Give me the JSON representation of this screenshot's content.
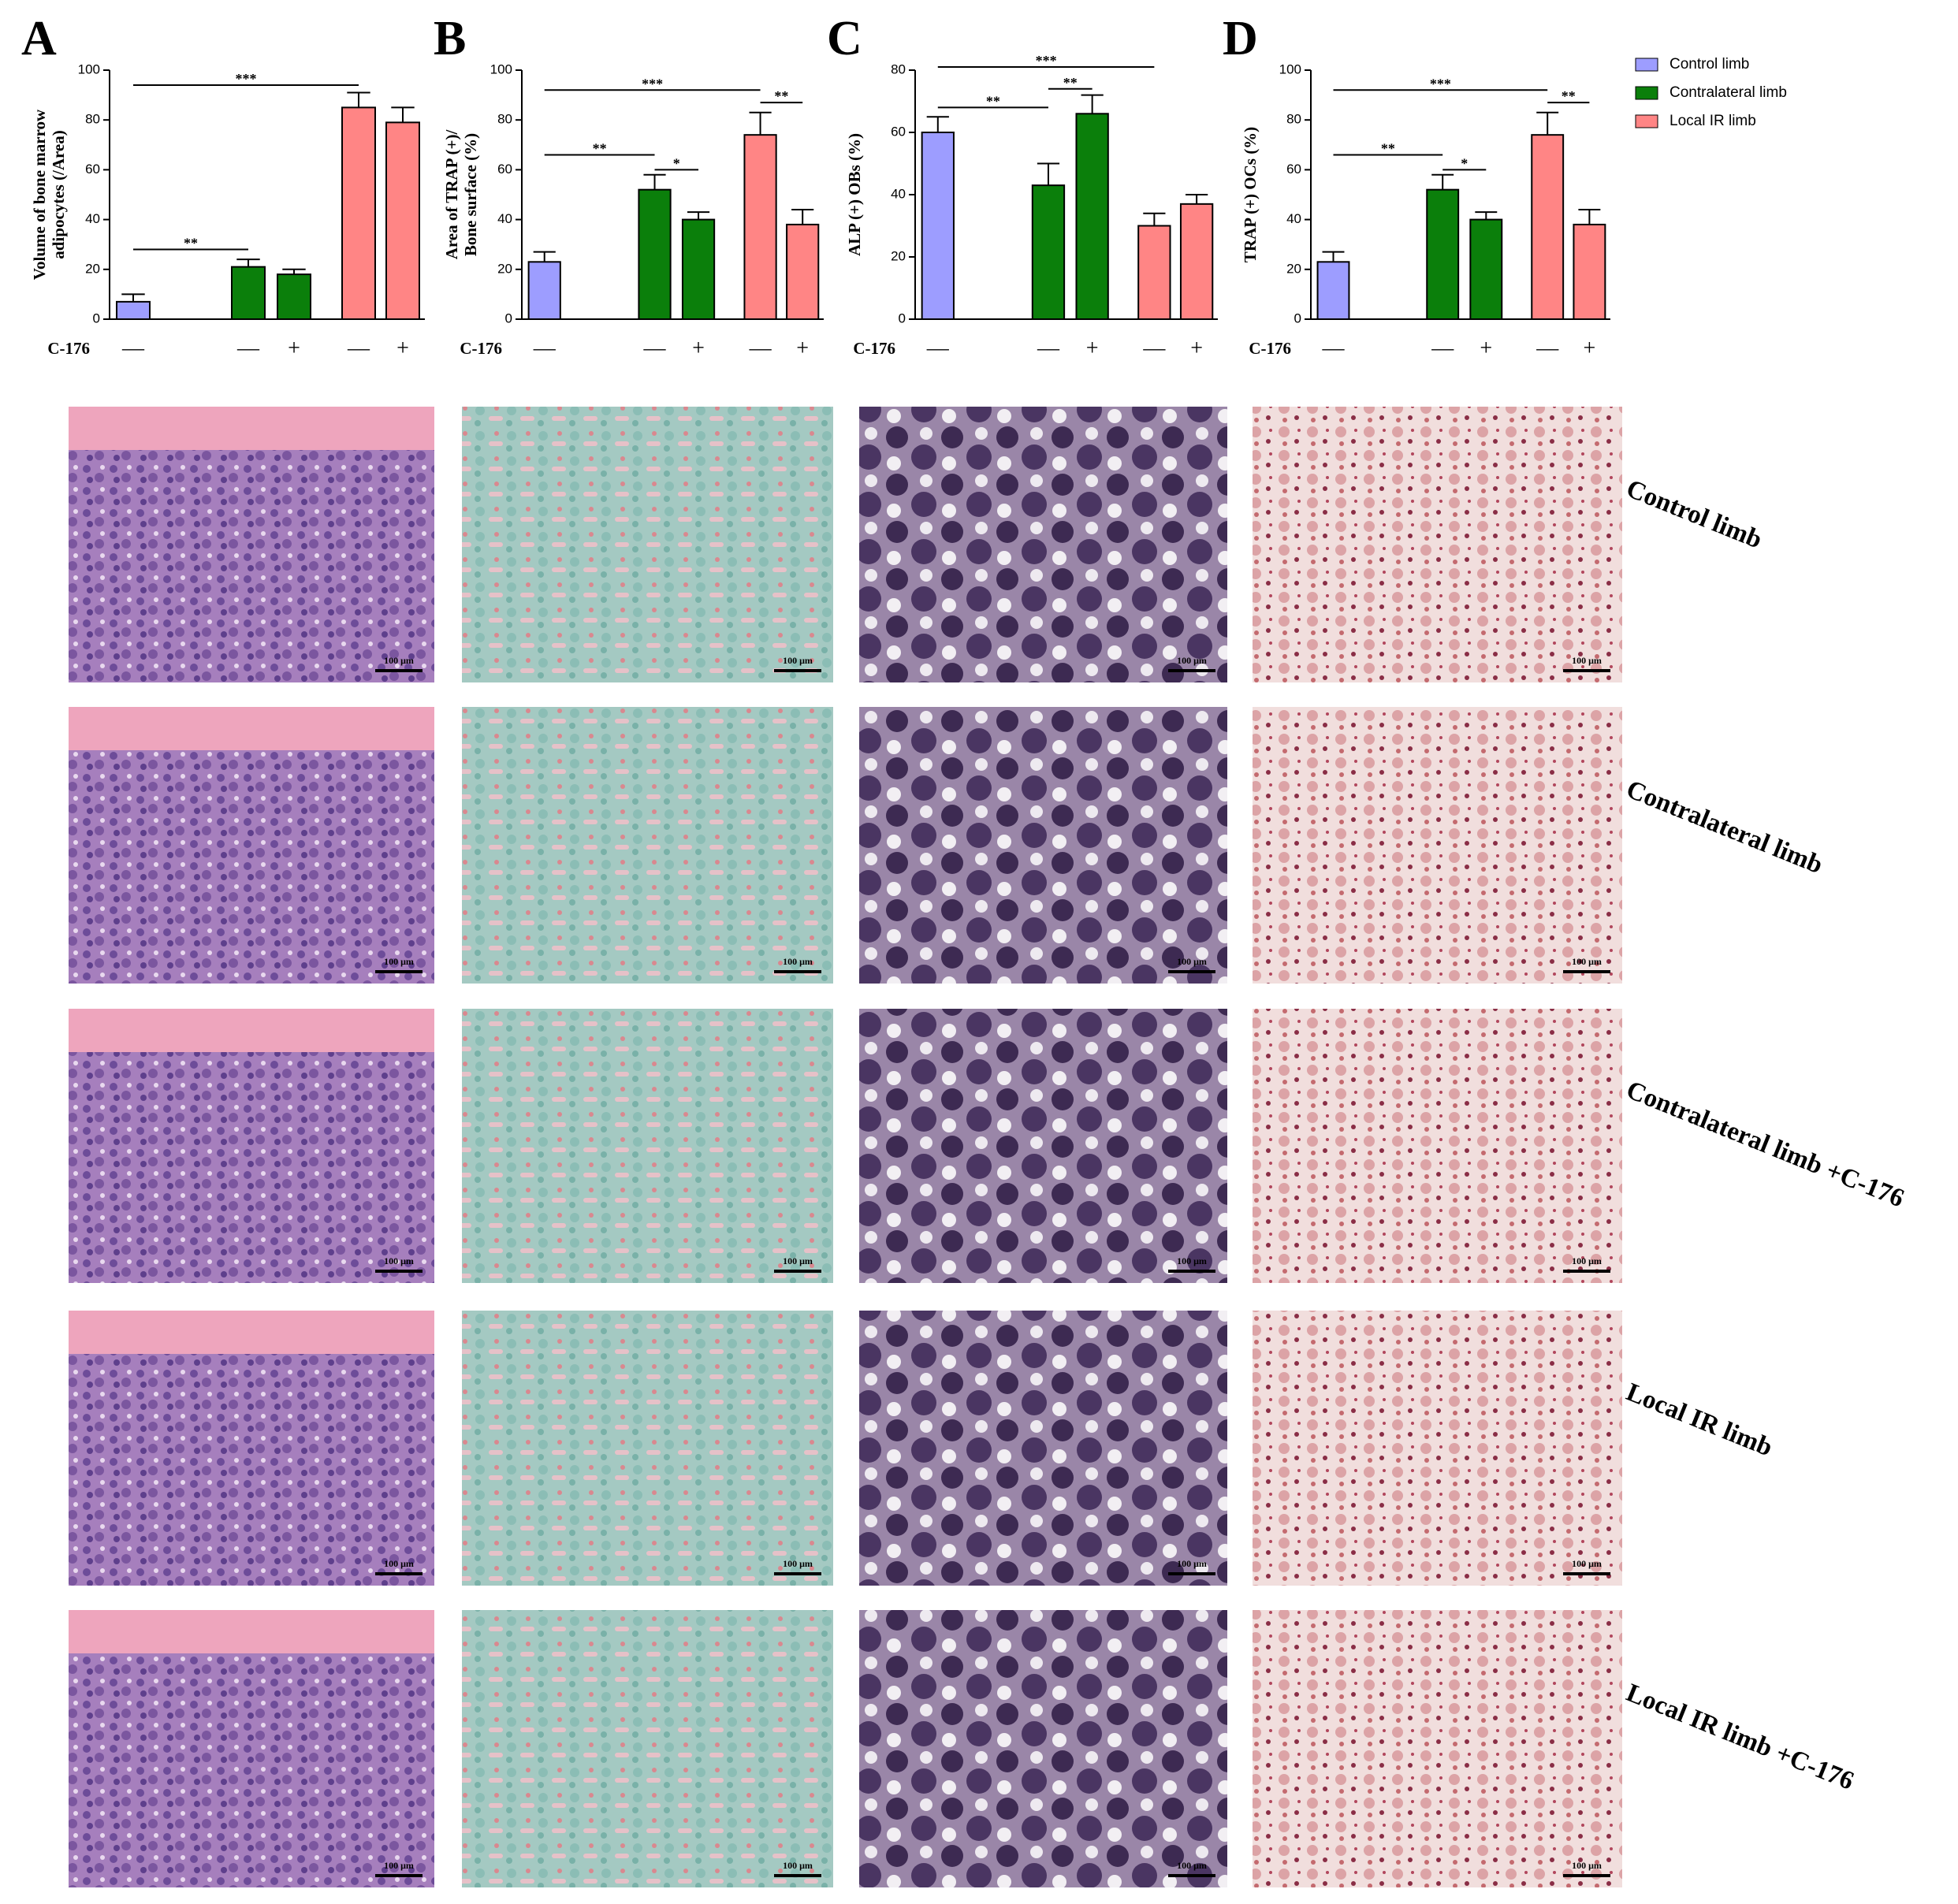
{
  "chart_data": [
    {
      "type": "bar",
      "panel": "A",
      "ylabel": [
        "Volume of bone marrow",
        "adipocytes (/Area)"
      ],
      "categories": [
        "—",
        null,
        "—",
        "+",
        "—",
        "+"
      ],
      "xlabel": "C-176",
      "ylim": [
        0,
        100
      ],
      "yticks": [
        0,
        20,
        40,
        60,
        80,
        100
      ],
      "series": [
        {
          "color": "#9d9dff",
          "values": [
            7,
            null,
            null,
            null,
            null,
            null
          ],
          "errors": [
            3,
            null,
            null,
            null,
            null,
            null
          ]
        },
        {
          "color": "#0b7f0b",
          "values": [
            null,
            null,
            21,
            18,
            null,
            null
          ],
          "errors": [
            null,
            null,
            3,
            2,
            null,
            null
          ]
        },
        {
          "color": "#ff8585",
          "values": [
            null,
            null,
            null,
            null,
            85,
            79
          ],
          "errors": [
            null,
            null,
            null,
            null,
            6,
            6
          ]
        }
      ],
      "brackets": [
        {
          "from": 0,
          "to": 4,
          "y": 94,
          "label": "***"
        },
        {
          "from": 0,
          "to": 2,
          "y": 28,
          "label": "**"
        }
      ]
    },
    {
      "type": "bar",
      "panel": "B",
      "ylabel": [
        "Area of TRAP (+)/",
        "Bone surface (%)"
      ],
      "categories": [
        "—",
        null,
        "—",
        "+",
        "—",
        "+"
      ],
      "xlabel": "C-176",
      "ylim": [
        0,
        100
      ],
      "yticks": [
        0,
        20,
        40,
        60,
        80,
        100
      ],
      "series": [
        {
          "color": "#9d9dff",
          "values": [
            23,
            null,
            null,
            null,
            null,
            null
          ],
          "errors": [
            4,
            null,
            null,
            null,
            null,
            null
          ]
        },
        {
          "color": "#0b7f0b",
          "values": [
            null,
            null,
            52,
            40,
            null,
            null
          ],
          "errors": [
            null,
            null,
            6,
            3,
            null,
            null
          ]
        },
        {
          "color": "#ff8585",
          "values": [
            null,
            null,
            null,
            null,
            74,
            38
          ],
          "errors": [
            null,
            null,
            null,
            null,
            9,
            6
          ]
        }
      ],
      "brackets": [
        {
          "from": 0,
          "to": 4,
          "y": 92,
          "label": "***"
        },
        {
          "from": 0,
          "to": 2,
          "y": 66,
          "label": "**"
        },
        {
          "from": 2,
          "to": 3,
          "y": 60,
          "label": "*"
        },
        {
          "from": 4,
          "to": 5,
          "y": 87,
          "label": "**"
        }
      ]
    },
    {
      "type": "bar",
      "panel": "C",
      "ylabel": [
        "ALP (+) OBs (%)"
      ],
      "categories": [
        "—",
        null,
        "—",
        "+",
        "—",
        "+"
      ],
      "xlabel": "C-176",
      "ylim": [
        0,
        80
      ],
      "yticks": [
        0,
        20,
        40,
        60,
        80
      ],
      "series": [
        {
          "color": "#9d9dff",
          "values": [
            60,
            null,
            null,
            null,
            null,
            null
          ],
          "errors": [
            5,
            null,
            null,
            null,
            null,
            null
          ]
        },
        {
          "color": "#0b7f0b",
          "values": [
            null,
            null,
            43,
            66,
            null,
            null
          ],
          "errors": [
            null,
            null,
            7,
            6,
            null,
            null
          ]
        },
        {
          "color": "#ff8585",
          "values": [
            null,
            null,
            null,
            null,
            30,
            37
          ],
          "errors": [
            null,
            null,
            null,
            null,
            4,
            3
          ]
        }
      ],
      "brackets": [
        {
          "from": 0,
          "to": 4,
          "y": 81,
          "label": "***"
        },
        {
          "from": 0,
          "to": 2,
          "y": 68,
          "label": "**"
        },
        {
          "from": 2,
          "to": 3,
          "y": 74,
          "label": "**"
        }
      ]
    },
    {
      "type": "bar",
      "panel": "D",
      "ylabel": [
        "TRAP (+) OCs (%)"
      ],
      "categories": [
        "—",
        null,
        "—",
        "+",
        "—",
        "+"
      ],
      "xlabel": "C-176",
      "ylim": [
        0,
        100
      ],
      "yticks": [
        0,
        20,
        40,
        60,
        80,
        100
      ],
      "legend": "outside right",
      "series": [
        {
          "name": "Control limb",
          "color": "#9d9dff",
          "values": [
            23,
            null,
            null,
            null,
            null,
            null
          ],
          "errors": [
            4,
            null,
            null,
            null,
            null,
            null
          ]
        },
        {
          "name": "Contralateral limb",
          "color": "#0b7f0b",
          "values": [
            null,
            null,
            52,
            40,
            null,
            null
          ],
          "errors": [
            null,
            null,
            6,
            3,
            null,
            null
          ]
        },
        {
          "name": "Local IR limb",
          "color": "#ff8585",
          "values": [
            null,
            null,
            null,
            null,
            74,
            38
          ],
          "errors": [
            null,
            null,
            null,
            null,
            9,
            6
          ]
        }
      ],
      "brackets": [
        {
          "from": 0,
          "to": 4,
          "y": 92,
          "label": "***"
        },
        {
          "from": 0,
          "to": 2,
          "y": 66,
          "label": "**"
        },
        {
          "from": 2,
          "to": 3,
          "y": 60,
          "label": "*"
        },
        {
          "from": 4,
          "to": 5,
          "y": 87,
          "label": "**"
        }
      ]
    }
  ],
  "row_labels": [
    "Control limb",
    "Contralateral limb",
    "Contralateral limb +C-176",
    "Local IR limb",
    "Local IR limb +C-176"
  ],
  "scale_bar": "100 μm"
}
